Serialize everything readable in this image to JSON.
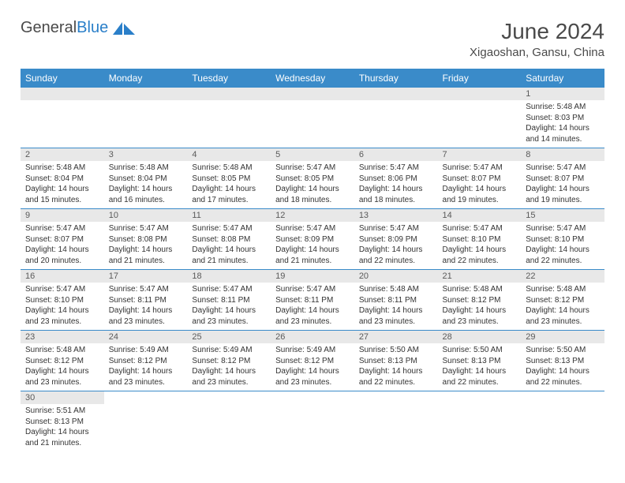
{
  "logo": {
    "textGeneral": "General",
    "textBlue": "Blue"
  },
  "title": "June 2024",
  "location": "Xigaoshan, Gansu, China",
  "colors": {
    "headerBg": "#3a8bc9",
    "headerText": "#ffffff",
    "dayNumBg": "#e8e8e8",
    "dayNumText": "#5a5a5a",
    "borderColor": "#3a8bc9",
    "titleColor": "#4a4a4a",
    "bodyText": "#333333"
  },
  "typography": {
    "title_fontsize": 28,
    "location_fontsize": 15,
    "weekday_fontsize": 12,
    "daynum_fontsize": 11,
    "body_fontsize": 10
  },
  "weekdays": [
    "Sunday",
    "Monday",
    "Tuesday",
    "Wednesday",
    "Thursday",
    "Friday",
    "Saturday"
  ],
  "layout": {
    "rows": 6,
    "cols": 7,
    "firstDayCol": 6,
    "daysInMonth": 30
  },
  "days": {
    "1": {
      "sunrise": "5:48 AM",
      "sunset": "8:03 PM",
      "daylight": "14 hours and 14 minutes."
    },
    "2": {
      "sunrise": "5:48 AM",
      "sunset": "8:04 PM",
      "daylight": "14 hours and 15 minutes."
    },
    "3": {
      "sunrise": "5:48 AM",
      "sunset": "8:04 PM",
      "daylight": "14 hours and 16 minutes."
    },
    "4": {
      "sunrise": "5:48 AM",
      "sunset": "8:05 PM",
      "daylight": "14 hours and 17 minutes."
    },
    "5": {
      "sunrise": "5:47 AM",
      "sunset": "8:05 PM",
      "daylight": "14 hours and 18 minutes."
    },
    "6": {
      "sunrise": "5:47 AM",
      "sunset": "8:06 PM",
      "daylight": "14 hours and 18 minutes."
    },
    "7": {
      "sunrise": "5:47 AM",
      "sunset": "8:07 PM",
      "daylight": "14 hours and 19 minutes."
    },
    "8": {
      "sunrise": "5:47 AM",
      "sunset": "8:07 PM",
      "daylight": "14 hours and 19 minutes."
    },
    "9": {
      "sunrise": "5:47 AM",
      "sunset": "8:07 PM",
      "daylight": "14 hours and 20 minutes."
    },
    "10": {
      "sunrise": "5:47 AM",
      "sunset": "8:08 PM",
      "daylight": "14 hours and 21 minutes."
    },
    "11": {
      "sunrise": "5:47 AM",
      "sunset": "8:08 PM",
      "daylight": "14 hours and 21 minutes."
    },
    "12": {
      "sunrise": "5:47 AM",
      "sunset": "8:09 PM",
      "daylight": "14 hours and 21 minutes."
    },
    "13": {
      "sunrise": "5:47 AM",
      "sunset": "8:09 PM",
      "daylight": "14 hours and 22 minutes."
    },
    "14": {
      "sunrise": "5:47 AM",
      "sunset": "8:10 PM",
      "daylight": "14 hours and 22 minutes."
    },
    "15": {
      "sunrise": "5:47 AM",
      "sunset": "8:10 PM",
      "daylight": "14 hours and 22 minutes."
    },
    "16": {
      "sunrise": "5:47 AM",
      "sunset": "8:10 PM",
      "daylight": "14 hours and 23 minutes."
    },
    "17": {
      "sunrise": "5:47 AM",
      "sunset": "8:11 PM",
      "daylight": "14 hours and 23 minutes."
    },
    "18": {
      "sunrise": "5:47 AM",
      "sunset": "8:11 PM",
      "daylight": "14 hours and 23 minutes."
    },
    "19": {
      "sunrise": "5:47 AM",
      "sunset": "8:11 PM",
      "daylight": "14 hours and 23 minutes."
    },
    "20": {
      "sunrise": "5:48 AM",
      "sunset": "8:11 PM",
      "daylight": "14 hours and 23 minutes."
    },
    "21": {
      "sunrise": "5:48 AM",
      "sunset": "8:12 PM",
      "daylight": "14 hours and 23 minutes."
    },
    "22": {
      "sunrise": "5:48 AM",
      "sunset": "8:12 PM",
      "daylight": "14 hours and 23 minutes."
    },
    "23": {
      "sunrise": "5:48 AM",
      "sunset": "8:12 PM",
      "daylight": "14 hours and 23 minutes."
    },
    "24": {
      "sunrise": "5:49 AM",
      "sunset": "8:12 PM",
      "daylight": "14 hours and 23 minutes."
    },
    "25": {
      "sunrise": "5:49 AM",
      "sunset": "8:12 PM",
      "daylight": "14 hours and 23 minutes."
    },
    "26": {
      "sunrise": "5:49 AM",
      "sunset": "8:12 PM",
      "daylight": "14 hours and 23 minutes."
    },
    "27": {
      "sunrise": "5:50 AM",
      "sunset": "8:13 PM",
      "daylight": "14 hours and 22 minutes."
    },
    "28": {
      "sunrise": "5:50 AM",
      "sunset": "8:13 PM",
      "daylight": "14 hours and 22 minutes."
    },
    "29": {
      "sunrise": "5:50 AM",
      "sunset": "8:13 PM",
      "daylight": "14 hours and 22 minutes."
    },
    "30": {
      "sunrise": "5:51 AM",
      "sunset": "8:13 PM",
      "daylight": "14 hours and 21 minutes."
    }
  },
  "labels": {
    "sunrise": "Sunrise:",
    "sunset": "Sunset:",
    "daylight": "Daylight:"
  }
}
